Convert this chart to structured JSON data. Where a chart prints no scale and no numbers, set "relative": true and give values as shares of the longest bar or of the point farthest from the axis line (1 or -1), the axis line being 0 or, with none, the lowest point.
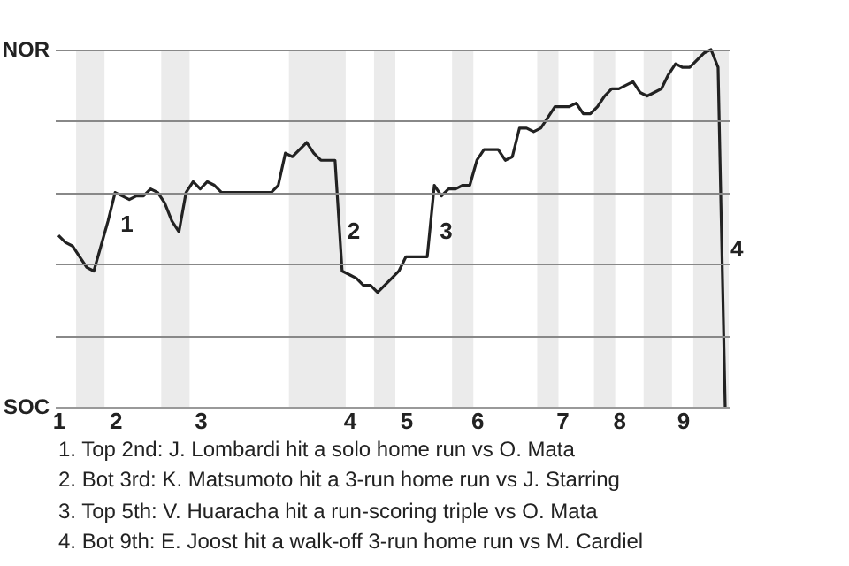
{
  "chart_data": {
    "type": "line",
    "relative": true,
    "categories": [
      "1",
      null,
      null,
      null,
      null,
      null,
      null,
      null,
      "2",
      null,
      null,
      null,
      null,
      null,
      null,
      null,
      null,
      null,
      null,
      null,
      "3",
      null,
      null,
      null,
      null,
      null,
      null,
      null,
      null,
      null,
      null,
      null,
      null,
      null,
      null,
      null,
      null,
      null,
      null,
      null,
      null,
      "4",
      null,
      null,
      null,
      null,
      null,
      null,
      null,
      "5",
      null,
      null,
      null,
      null,
      null,
      null,
      null,
      null,
      null,
      "6",
      null,
      null,
      null,
      null,
      null,
      null,
      null,
      null,
      null,
      null,
      null,
      "7",
      null,
      null,
      null,
      null,
      null,
      null,
      null,
      "8",
      null,
      null,
      null,
      null,
      null,
      null,
      null,
      null,
      "9",
      null,
      null,
      null,
      null,
      null,
      null
    ],
    "series": [
      {
        "color": "#222222",
        "values": [
          0.48,
          0.46,
          0.45,
          0.42,
          0.39,
          0.38,
          0.45,
          0.52,
          0.6,
          0.59,
          0.58,
          0.59,
          0.59,
          0.61,
          0.6,
          0.57,
          0.52,
          0.49,
          0.6,
          0.63,
          0.61,
          0.63,
          0.62,
          0.6,
          0.6,
          0.6,
          0.6,
          0.6,
          0.6,
          0.6,
          0.6,
          0.62,
          0.71,
          0.7,
          0.72,
          0.74,
          0.71,
          0.69,
          0.69,
          0.69,
          0.38,
          0.37,
          0.36,
          0.34,
          0.34,
          0.32,
          0.34,
          0.36,
          0.38,
          0.42,
          0.42,
          0.42,
          0.42,
          0.62,
          0.59,
          0.61,
          0.61,
          0.62,
          0.62,
          0.69,
          0.72,
          0.72,
          0.72,
          0.69,
          0.7,
          0.78,
          0.78,
          0.77,
          0.78,
          0.81,
          0.84,
          0.84,
          0.84,
          0.85,
          0.82,
          0.82,
          0.84,
          0.87,
          0.89,
          0.89,
          0.9,
          0.91,
          0.88,
          0.87,
          0.88,
          0.89,
          0.93,
          0.96,
          0.95,
          0.95,
          0.97,
          0.99,
          1,
          0.95,
          0
        ]
      }
    ],
    "grid": "y",
    "annotations": [
      "NOR",
      "SOC",
      "1",
      "2",
      "3",
      "4",
      "1. Top 2nd: J. Lombardi hit a solo home run vs O. Mata",
      "2. Bot 3rd: K. Matsumoto hit a 3-run home run vs J. Starring",
      "3. Top 5th: V. Huaracha hit a run-scoring triple vs O. Mata",
      "4. Bot 9th: E. Joost hit a walk-off 3-run home run vs M. Cardiel"
    ]
  }
}
